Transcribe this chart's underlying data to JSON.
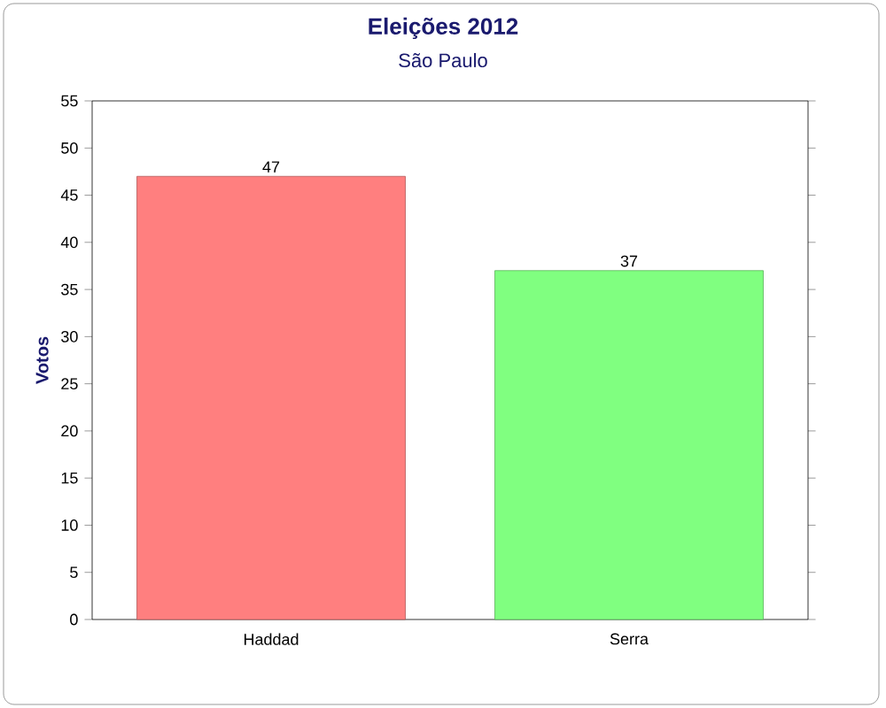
{
  "chart_data": {
    "type": "bar",
    "title": "Eleições 2012",
    "subtitle": "São Paulo",
    "ylabel": "Votos",
    "categories": [
      "Haddad",
      "Serra"
    ],
    "values": [
      47,
      37
    ],
    "colors": [
      "#ff7f7f",
      "#80ff80"
    ],
    "ylim": [
      0,
      55
    ],
    "yticks": [
      0,
      5,
      10,
      15,
      20,
      25,
      30,
      35,
      40,
      45,
      50,
      55
    ],
    "data_labels": true
  }
}
